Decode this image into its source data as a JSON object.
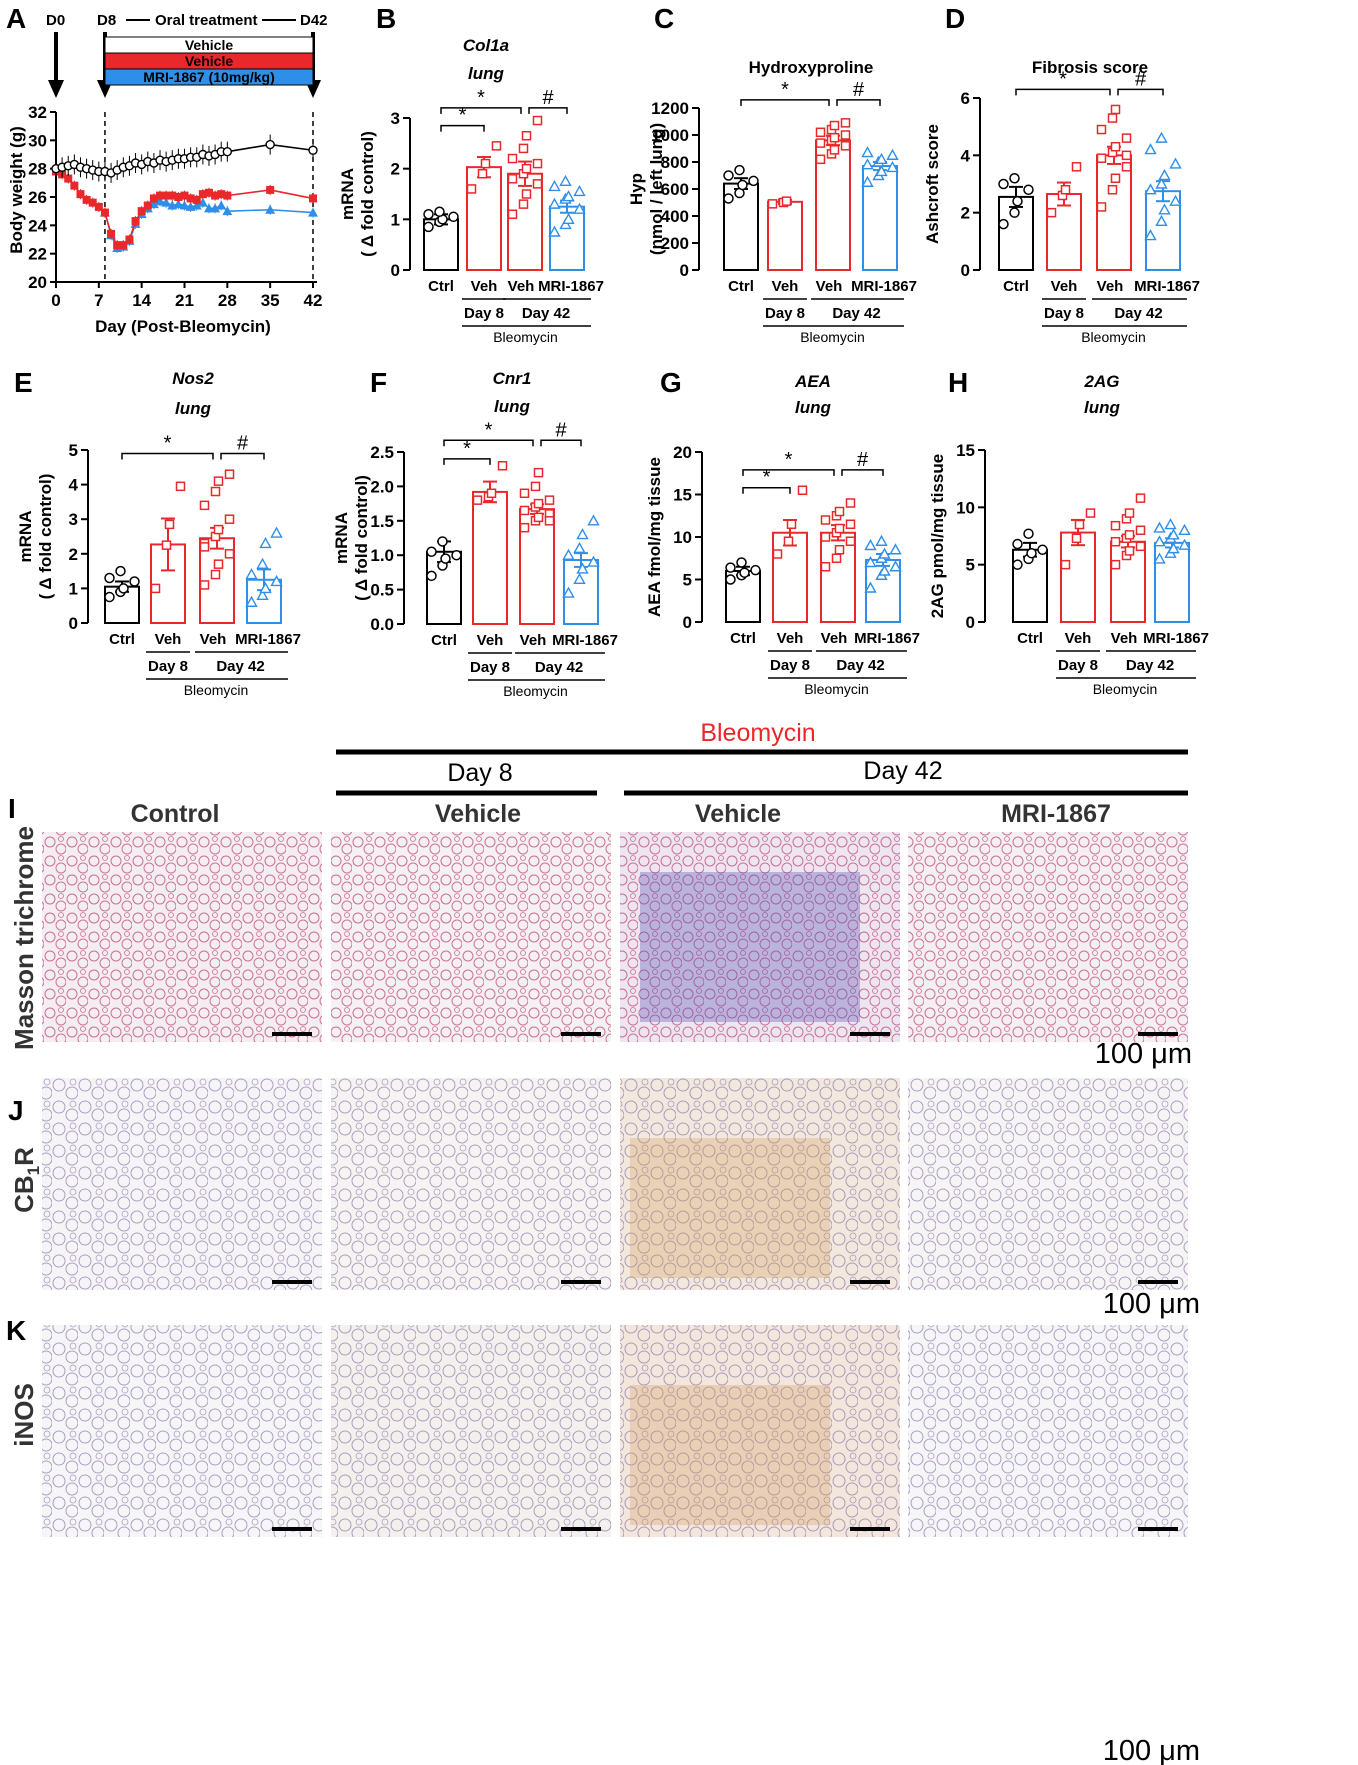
{
  "colors": {
    "ctrl": "#000000",
    "veh": "#e8282b",
    "mri": "#2f8fe8",
    "bleo_title": "#e8282b"
  },
  "panel_a": {
    "letter": "A",
    "d0": "D0",
    "d8": "D8",
    "oral": "Oral treatment",
    "d42": "D42",
    "legend": [
      "Vehicle",
      "Vehicle",
      "MRI-1867 (10mg/kg)"
    ],
    "ylabel": "Body weight (g)",
    "xlabel": "Day (Post-Bleomycin)",
    "yticks": [
      "20",
      "22",
      "24",
      "26",
      "28",
      "30",
      "32"
    ],
    "xticks": [
      "0",
      "7",
      "14",
      "21",
      "28",
      "35",
      "42"
    ]
  },
  "bar_common": {
    "cats": [
      "Ctrl",
      "Veh",
      "Veh",
      "MRI-1867"
    ],
    "day8": "Day 8",
    "day42": "Day 42",
    "bleomycin": "Bleomycin",
    "star": "*",
    "hash": "#"
  },
  "chart_data": [
    {
      "type": "line",
      "x": [
        0,
        1,
        2,
        3,
        4,
        5,
        6,
        7,
        8,
        9,
        10,
        11,
        12,
        13,
        14,
        15,
        16,
        17,
        18,
        19,
        20,
        21,
        22,
        23,
        24,
        25,
        26,
        27,
        28,
        35,
        42
      ],
      "xlim": [
        0,
        42
      ],
      "ylim": [
        20,
        32
      ],
      "xlabel": "Day (Post-Bleomycin)",
      "ylabel": "Body weight (g)",
      "series": [
        {
          "name": "Vehicle",
          "color": "#000000",
          "values": [
            28.0,
            28.1,
            28.2,
            28.3,
            28.1,
            28.0,
            27.9,
            27.8,
            27.8,
            27.7,
            27.9,
            28.1,
            28.2,
            28.4,
            28.3,
            28.5,
            28.4,
            28.6,
            28.5,
            28.6,
            28.7,
            28.7,
            28.8,
            28.8,
            29.0,
            28.9,
            29.0,
            29.2,
            29.2,
            29.7,
            29.3
          ]
        },
        {
          "name": "Vehicle",
          "color": "#e8282b",
          "values": [
            27.8,
            27.6,
            27.3,
            26.8,
            26.2,
            25.8,
            25.6,
            25.3,
            24.9,
            23.4,
            22.6,
            22.6,
            23.0,
            24.3,
            25.0,
            25.4,
            25.9,
            26.1,
            26.1,
            26.1,
            26.0,
            26.1,
            25.9,
            25.8,
            26.2,
            26.3,
            26.1,
            26.2,
            26.1,
            26.5,
            25.9
          ]
        },
        {
          "name": "MRI-1867 (10mg/kg)",
          "color": "#2f8fe8",
          "values": [
            27.8,
            27.6,
            27.3,
            26.8,
            26.2,
            25.8,
            25.6,
            25.3,
            24.9,
            23.3,
            22.4,
            22.5,
            22.9,
            24.1,
            24.8,
            25.2,
            25.5,
            25.7,
            25.6,
            25.4,
            25.5,
            25.4,
            25.3,
            25.4,
            25.6,
            25.2,
            25.2,
            25.4,
            25.0,
            25.1,
            24.9
          ]
        }
      ]
    },
    {
      "type": "bar",
      "title": "Col1a",
      "subtitle": "lung",
      "ylabel": "mRNA",
      "ylabel2": "( Δ fold control)",
      "ylim": [
        0,
        3
      ],
      "ytick_labels": [
        "0",
        "1",
        "2",
        "3"
      ],
      "categories": [
        "Ctrl",
        "Veh",
        "Veh",
        "MRI-1867"
      ],
      "values": [
        1.0,
        2.03,
        1.9,
        1.25
      ],
      "errors": [
        0.1,
        0.2,
        0.24,
        0.12
      ],
      "points": [
        [
          0.85,
          0.95,
          1.0,
          1.05,
          1.1,
          1.15
        ],
        [
          1.6,
          1.9,
          2.1,
          2.45
        ],
        [
          1.1,
          1.3,
          1.5,
          1.7,
          1.8,
          1.9,
          2.0,
          2.1,
          2.2,
          2.4,
          2.65,
          2.95
        ],
        [
          0.75,
          0.9,
          1.0,
          1.2,
          1.3,
          1.4,
          1.45,
          1.55,
          1.65,
          1.75
        ]
      ],
      "sig": [
        {
          "from": 0,
          "to": 1,
          "label": "*",
          "y": 2.85
        },
        {
          "from": 0,
          "to": 2,
          "label": "*",
          "y": 3.2
        },
        {
          "from": 2,
          "to": 3,
          "label": "#",
          "y": 3.2
        }
      ]
    },
    {
      "type": "bar",
      "title": "Hydroxyproline",
      "subtitle": "",
      "ylabel": "Hyp",
      "ylabel2": "(nmol / left lung)",
      "ylim": [
        0,
        1200
      ],
      "ytick_labels": [
        "0",
        "200",
        "400",
        "600",
        "800",
        "1000",
        "1200"
      ],
      "categories": [
        "Ctrl",
        "Veh",
        "Veh",
        "MRI-1867"
      ],
      "values": [
        640,
        505,
        960,
        770
      ],
      "errors": [
        40,
        15,
        35,
        30
      ],
      "points": [
        [
          530,
          570,
          630,
          660,
          700,
          740
        ],
        [
          490,
          500,
          510
        ],
        [
          820,
          860,
          890,
          920,
          940,
          960,
          980,
          1000,
          1020,
          1040,
          1070,
          1090
        ],
        [
          650,
          700,
          730,
          760,
          780,
          800,
          820,
          850,
          870
        ]
      ],
      "sig": [
        {
          "from": 0,
          "to": 2,
          "label": "*",
          "y": 1260
        },
        {
          "from": 2,
          "to": 3,
          "label": "#",
          "y": 1260
        }
      ]
    },
    {
      "type": "bar",
      "title": "Fibrosis score",
      "subtitle": "",
      "ylabel": "Ashcroft score",
      "ylabel2": "",
      "ylim": [
        0,
        6
      ],
      "ytick_labels": [
        "0",
        "2",
        "4",
        "6"
      ],
      "categories": [
        "Ctrl",
        "Veh",
        "Veh",
        "MRI-1867"
      ],
      "values": [
        2.55,
        2.65,
        4.0,
        2.75
      ],
      "errors": [
        0.35,
        0.4,
        0.3,
        0.35
      ],
      "points": [
        [
          1.6,
          2.0,
          2.4,
          2.8,
          3.0,
          3.2
        ],
        [
          2.0,
          2.6,
          2.8,
          3.6
        ],
        [
          2.2,
          2.8,
          3.2,
          3.6,
          3.9,
          4.1,
          4.3,
          4.6,
          4.9,
          5.3,
          5.6,
          4.0
        ],
        [
          1.2,
          1.7,
          2.1,
          2.4,
          2.8,
          3.0,
          3.3,
          3.7,
          4.2,
          4.6
        ]
      ],
      "sig": [
        {
          "from": 0,
          "to": 2,
          "label": "*",
          "y": 6.3
        },
        {
          "from": 2,
          "to": 3,
          "label": "#",
          "y": 6.3
        }
      ]
    },
    {
      "type": "bar",
      "title": "Nos2",
      "subtitle": "lung",
      "ylabel": "mRNA",
      "ylabel2": "( Δ fold control)",
      "ylim": [
        0,
        5
      ],
      "ytick_labels": [
        "0",
        "1",
        "2",
        "3",
        "4",
        "5"
      ],
      "categories": [
        "Ctrl",
        "Veh",
        "Veh",
        "MRI-1867"
      ],
      "values": [
        1.05,
        2.27,
        2.45,
        1.25
      ],
      "errors": [
        0.15,
        0.75,
        0.3,
        0.3
      ],
      "points": [
        [
          0.75,
          0.9,
          1.0,
          1.2,
          1.3,
          1.5
        ],
        [
          1.0,
          2.25,
          2.85,
          3.95
        ],
        [
          1.1,
          1.4,
          1.7,
          2.0,
          2.3,
          2.5,
          2.7,
          3.0,
          3.4,
          3.8,
          4.1,
          4.3,
          2.2
        ],
        [
          0.6,
          0.8,
          1.0,
          1.2,
          1.4,
          1.7,
          2.3,
          2.6
        ]
      ],
      "sig": [
        {
          "from": 0,
          "to": 2,
          "label": "*",
          "y": 4.9
        },
        {
          "from": 2,
          "to": 3,
          "label": "#",
          "y": 4.9
        }
      ]
    },
    {
      "type": "bar",
      "title": "Cnr1",
      "subtitle": "lung",
      "ylabel": "mRNA",
      "ylabel2": "( Δ fold control)",
      "ylim": [
        0,
        2.5
      ],
      "ytick_labels": [
        "0.0",
        "0.5",
        "1.0",
        "1.5",
        "2.0",
        "2.5"
      ],
      "categories": [
        "Ctrl",
        "Veh",
        "Veh",
        "MRI-1867"
      ],
      "values": [
        1.05,
        1.92,
        1.67,
        0.93
      ],
      "errors": [
        0.15,
        0.15,
        0.07,
        0.1
      ],
      "points": [
        [
          0.7,
          0.85,
          0.95,
          1.0,
          1.05,
          1.2
        ],
        [
          1.8,
          1.85,
          1.9,
          2.3
        ],
        [
          1.4,
          1.5,
          1.55,
          1.6,
          1.65,
          1.7,
          1.75,
          1.8,
          1.9,
          2.0,
          2.2,
          1.5
        ],
        [
          0.45,
          0.65,
          0.8,
          0.9,
          1.0,
          1.1,
          1.3,
          1.5
        ]
      ],
      "sig": [
        {
          "from": 0,
          "to": 1,
          "label": "*",
          "y": 2.4
        },
        {
          "from": 0,
          "to": 2,
          "label": "*",
          "y": 2.67
        },
        {
          "from": 2,
          "to": 3,
          "label": "#",
          "y": 2.67
        }
      ]
    },
    {
      "type": "bar",
      "title": "AEA",
      "subtitle": "lung",
      "ylabel": "AEA fmol/mg tissue",
      "ylabel2": "",
      "ylim": [
        0,
        20
      ],
      "ytick_labels": [
        "0",
        "5",
        "10",
        "15",
        "20"
      ],
      "categories": [
        "Ctrl",
        "Veh",
        "Veh",
        "MRI-1867"
      ],
      "values": [
        6.0,
        10.5,
        10.5,
        7.3
      ],
      "errors": [
        0.5,
        1.5,
        0.9,
        0.7
      ],
      "points": [
        [
          5.0,
          5.5,
          5.8,
          6.1,
          6.4,
          7.0
        ],
        [
          8.0,
          9.5,
          11.5,
          15.5
        ],
        [
          6.5,
          7.5,
          8.5,
          9.5,
          10.0,
          10.5,
          11.0,
          11.5,
          12.0,
          12.5,
          13.0,
          14.0
        ],
        [
          4.0,
          5.5,
          6.0,
          6.5,
          7.0,
          7.5,
          8.0,
          8.5,
          9.0,
          9.5
        ]
      ],
      "sig": [
        {
          "from": 0,
          "to": 1,
          "label": "*",
          "y": 15.8
        },
        {
          "from": 0,
          "to": 2,
          "label": "*",
          "y": 17.9
        },
        {
          "from": 2,
          "to": 3,
          "label": "#",
          "y": 17.9
        }
      ]
    },
    {
      "type": "bar",
      "title": "2AG",
      "subtitle": "lung",
      "ylabel": "2AG pmol/mg tissue",
      "ylabel2": "",
      "ylim": [
        0,
        15
      ],
      "ytick_labels": [
        "0",
        "5",
        "10",
        "15"
      ],
      "categories": [
        "Ctrl",
        "Veh",
        "Veh",
        "MRI-1867"
      ],
      "values": [
        6.3,
        7.8,
        7.0,
        6.9
      ],
      "errors": [
        0.6,
        1.1,
        0.5,
        0.4
      ],
      "points": [
        [
          5.0,
          5.5,
          6.0,
          6.3,
          6.8,
          7.7
        ],
        [
          5.0,
          7.3,
          8.5,
          9.5
        ],
        [
          5.0,
          5.8,
          6.2,
          6.6,
          7.0,
          7.3,
          7.6,
          8.0,
          8.4,
          9.0,
          9.5,
          10.8
        ],
        [
          5.5,
          6.0,
          6.4,
          6.7,
          7.0,
          7.3,
          7.6,
          8.0,
          8.2,
          8.5
        ]
      ],
      "sig": []
    }
  ],
  "histology": {
    "bleomycin": "Bleomycin",
    "day8": "Day 8",
    "day42": "Day 42",
    "cols": [
      "Control",
      "Vehicle",
      "Vehicle",
      "MRI-1867"
    ],
    "rows": [
      "Masson trichrome",
      "CB",
      "iNOS"
    ],
    "cb_sub": "1",
    "cb_r": "R",
    "scale": "100 μm",
    "letters": [
      "I",
      "J",
      "K"
    ]
  }
}
